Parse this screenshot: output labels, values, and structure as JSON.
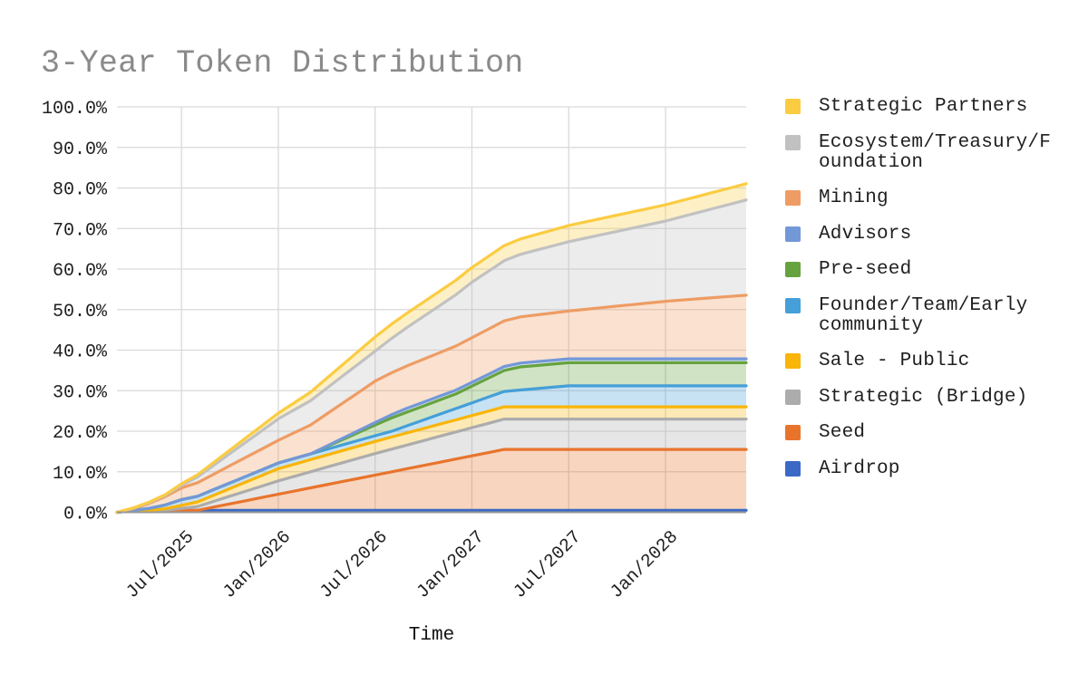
{
  "chart_data": {
    "type": "area",
    "stacked": true,
    "title": "3-Year Token Distribution",
    "xlabel": "Time",
    "ylabel": "",
    "y_unit": "%",
    "ylim": [
      0,
      100
    ],
    "y_tick_step": 10,
    "y_tick_labels": [
      "0.0%",
      "10.0%",
      "20.0%",
      "30.0%",
      "40.0%",
      "50.0%",
      "60.0%",
      "70.0%",
      "80.0%",
      "90.0%",
      "100.0%"
    ],
    "x": [
      "Mar/2025",
      "Apr/2025",
      "May/2025",
      "Jun/2025",
      "Jul/2025",
      "Aug/2025",
      "Sep/2025",
      "Oct/2025",
      "Nov/2025",
      "Dec/2025",
      "Jan/2026",
      "Feb/2026",
      "Mar/2026",
      "Apr/2026",
      "May/2026",
      "Jun/2026",
      "Jul/2026",
      "Aug/2026",
      "Sep/2026",
      "Oct/2026",
      "Nov/2026",
      "Dec/2026",
      "Jan/2027",
      "Feb/2027",
      "Mar/2027",
      "Apr/2027",
      "May/2027",
      "Jun/2027",
      "Jul/2027",
      "Aug/2027",
      "Sep/2027",
      "Oct/2027",
      "Nov/2027",
      "Dec/2027",
      "Jan/2028",
      "Feb/2028",
      "Mar/2028",
      "Apr/2028",
      "May/2028",
      "Jun/2028"
    ],
    "x_tick_indices": [
      4,
      10,
      16,
      22,
      28,
      34
    ],
    "x_tick_labels": [
      "Jul/2025",
      "Jan/2026",
      "Jul/2026",
      "Jan/2027",
      "Jul/2027",
      "Jan/2028"
    ],
    "grid": true,
    "legend_position": "right",
    "legend_order": "reverse-stack",
    "fill_opacity": 0.3,
    "series": [
      {
        "name": "Airdrop",
        "color": "#3B69C5",
        "values": [
          0.0,
          0.5,
          0.5,
          0.5,
          0.5,
          0.5,
          0.5,
          0.5,
          0.5,
          0.5,
          0.5,
          0.5,
          0.5,
          0.5,
          0.5,
          0.5,
          0.5,
          0.5,
          0.5,
          0.5,
          0.5,
          0.5,
          0.5,
          0.5,
          0.5,
          0.5,
          0.5,
          0.5,
          0.5,
          0.5,
          0.5,
          0.5,
          0.5,
          0.5,
          0.5,
          0.5,
          0.5,
          0.5,
          0.5,
          0.5
        ]
      },
      {
        "name": "Seed",
        "color": "#E8742C",
        "values": [
          0.0,
          0.0,
          0.0,
          0.0,
          0.0,
          0.0,
          0.79,
          1.58,
          2.37,
          3.16,
          3.95,
          4.74,
          5.53,
          6.32,
          7.11,
          7.89,
          8.68,
          9.47,
          10.26,
          11.05,
          11.84,
          12.63,
          13.42,
          14.21,
          15.0,
          15.0,
          15.0,
          15.0,
          15.0,
          15.0,
          15.0,
          15.0,
          15.0,
          15.0,
          15.0,
          15.0,
          15.0,
          15.0,
          15.0,
          15.0
        ]
      },
      {
        "name": "Strategic (Bridge)",
        "color": "#ACACAC",
        "values": [
          0.0,
          0.0,
          0.0,
          0.0,
          0.47,
          0.94,
          1.41,
          1.89,
          2.36,
          2.83,
          3.3,
          3.63,
          3.97,
          4.3,
          4.63,
          4.97,
          5.3,
          5.58,
          5.85,
          6.12,
          6.4,
          6.67,
          6.95,
          7.22,
          7.5,
          7.5,
          7.5,
          7.5,
          7.5,
          7.5,
          7.5,
          7.5,
          7.5,
          7.5,
          7.5,
          7.5,
          7.5,
          7.5,
          7.5,
          7.5
        ]
      },
      {
        "name": "Sale - Public",
        "color": "#F9B509",
        "values": [
          0.0,
          0.0,
          0.0,
          0.38,
          0.75,
          1.12,
          1.5,
          1.88,
          2.25,
          2.62,
          3.0,
          3.0,
          3.0,
          3.0,
          3.0,
          3.0,
          3.0,
          3.0,
          3.0,
          3.0,
          3.0,
          3.0,
          3.0,
          3.0,
          3.0,
          3.0,
          3.0,
          3.0,
          3.0,
          3.0,
          3.0,
          3.0,
          3.0,
          3.0,
          3.0,
          3.0,
          3.0,
          3.0,
          3.0,
          3.0
        ]
      },
      {
        "name": "Founder/Team/Early community",
        "color": "#459FD8",
        "values": [
          0.0,
          0.0,
          0.47,
          0.93,
          1.4,
          1.4,
          1.4,
          1.4,
          1.4,
          1.4,
          1.4,
          1.4,
          1.4,
          1.4,
          1.4,
          1.4,
          1.4,
          1.4,
          1.75,
          2.09,
          2.44,
          2.78,
          3.13,
          3.47,
          3.82,
          4.16,
          4.51,
          4.85,
          5.2,
          5.2,
          5.2,
          5.2,
          5.2,
          5.2,
          5.2,
          5.2,
          5.2,
          5.2,
          5.2,
          5.2
        ]
      },
      {
        "name": "Pre-seed",
        "color": "#66A33E",
        "values": [
          0.0,
          0.0,
          0.0,
          0.0,
          0.0,
          0.0,
          0.0,
          0.0,
          0.0,
          0.0,
          0.0,
          0.0,
          0.0,
          0.66,
          1.32,
          1.98,
          2.64,
          3.3,
          3.38,
          3.45,
          3.52,
          3.6,
          4.12,
          4.65,
          5.18,
          5.7,
          5.7,
          5.7,
          5.7,
          5.7,
          5.7,
          5.7,
          5.7,
          5.7,
          5.7,
          5.7,
          5.7,
          5.7,
          5.7,
          5.7
        ]
      },
      {
        "name": "Advisors",
        "color": "#7398D8",
        "values": [
          0.0,
          0.0,
          0.0,
          0.0,
          0.0,
          0.0,
          0.0,
          0.0,
          0.0,
          0.0,
          0.0,
          0.0,
          0.0,
          0.16,
          0.32,
          0.47,
          0.63,
          0.79,
          0.95,
          0.95,
          0.95,
          0.95,
          0.95,
          0.95,
          0.95,
          0.95,
          0.95,
          0.95,
          0.95,
          0.95,
          0.95,
          0.95,
          0.95,
          0.95,
          0.95,
          0.95,
          0.95,
          0.95,
          0.95,
          0.95
        ]
      },
      {
        "name": "Mining",
        "color": "#EE9C64",
        "values": [
          0.0,
          0.4,
          1.23,
          2.07,
          2.9,
          3.35,
          3.8,
          4.25,
          4.7,
          5.15,
          5.6,
          6.37,
          7.13,
          7.9,
          8.67,
          9.43,
          10.2,
          10.33,
          10.47,
          10.6,
          10.73,
          10.87,
          11.0,
          11.13,
          11.27,
          11.4,
          11.53,
          11.67,
          11.8,
          12.2,
          12.6,
          13.0,
          13.4,
          13.8,
          14.2,
          14.5,
          14.8,
          15.1,
          15.4,
          15.7
        ]
      },
      {
        "name": "Ecosystem/Treasury/Foundation",
        "color": "#C1C1C1",
        "values": [
          0.0,
          0.1,
          0.2,
          0.3,
          0.65,
          1.42,
          2.2,
          2.97,
          3.75,
          4.52,
          5.3,
          5.65,
          6.0,
          6.35,
          6.7,
          7.05,
          7.4,
          8.45,
          9.5,
          10.55,
          11.6,
          12.65,
          13.7,
          14.27,
          14.83,
          15.4,
          15.97,
          16.53,
          17.1,
          17.55,
          18.0,
          18.45,
          18.9,
          19.35,
          19.8,
          20.54,
          21.28,
          22.02,
          22.76,
          23.5
        ]
      },
      {
        "name": "Strategic Partners",
        "color": "#FBCC42",
        "values": [
          0.0,
          0.07,
          0.13,
          0.2,
          0.37,
          0.54,
          0.71,
          0.89,
          1.06,
          1.23,
          1.4,
          1.75,
          2.1,
          2.45,
          2.8,
          3.15,
          3.5,
          3.52,
          3.53,
          3.55,
          3.57,
          3.58,
          3.6,
          3.67,
          3.73,
          3.8,
          3.87,
          3.93,
          4.0,
          4.0,
          4.0,
          4.0,
          4.0,
          4.0,
          4.0,
          4.0,
          4.0,
          4.0,
          4.0,
          4.0
        ]
      }
    ]
  },
  "colors": {
    "background": "#FFFFFF",
    "title": "#878787",
    "axis_text": "#1F1F1F",
    "gridline": "#D9D9D9",
    "baseline": "#999999",
    "legend_text": "#1F1F1F"
  }
}
